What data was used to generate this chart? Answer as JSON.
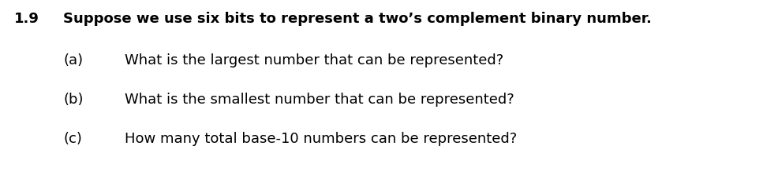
{
  "background_color": "#ffffff",
  "number": "1.9",
  "number_fontsize": 13,
  "number_fontweight": "bold",
  "title_text": "Suppose we use six bits to represent a two’s complement binary number.",
  "title_fontsize": 13,
  "title_fontweight": "bold",
  "items": [
    {
      "label": "(a)",
      "text": "What is the largest number that can be represented?"
    },
    {
      "label": "(b)",
      "text": "What is the smallest number that can be represented?"
    },
    {
      "label": "(c)",
      "text": "How many total base-10 numbers can be represented?"
    }
  ],
  "item_fontsize": 13,
  "item_fontweight": "normal",
  "text_color": "#000000",
  "font_family": "DejaVu Sans"
}
